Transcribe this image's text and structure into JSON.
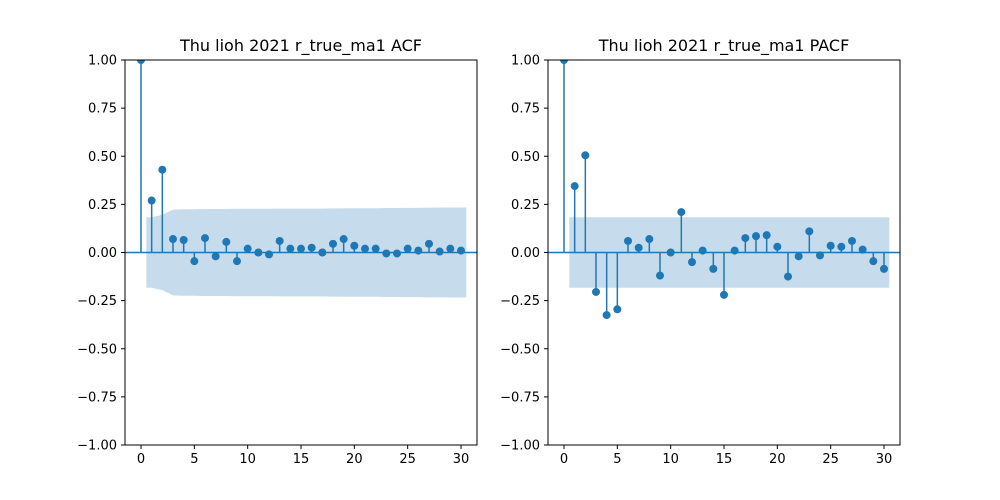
{
  "chart_data": [
    {
      "type": "stem",
      "title": "Thu lioh 2021 r_true_ma1 ACF",
      "xlabel": "",
      "ylabel": "",
      "xlim": [
        -1.5,
        31.5
      ],
      "ylim": [
        -1.0,
        1.0
      ],
      "xticks": [
        0,
        5,
        10,
        15,
        20,
        25,
        30
      ],
      "yticks": [
        -1.0,
        -0.75,
        -0.5,
        -0.25,
        0.0,
        0.25,
        0.5,
        0.75,
        1.0
      ],
      "ytick_labels": [
        "−1.00",
        "−0.75",
        "−0.50",
        "−0.25",
        "0.00",
        "0.25",
        "0.50",
        "0.75",
        "1.00"
      ],
      "grid": false,
      "color": "#1f77b4",
      "band_color": "#c6dbec",
      "lags": [
        0,
        1,
        2,
        3,
        4,
        5,
        6,
        7,
        8,
        9,
        10,
        11,
        12,
        13,
        14,
        15,
        16,
        17,
        18,
        19,
        20,
        21,
        22,
        23,
        24,
        25,
        26,
        27,
        28,
        29,
        30
      ],
      "values": [
        1.0,
        0.27,
        0.43,
        0.07,
        0.065,
        -0.045,
        0.075,
        -0.02,
        0.055,
        -0.045,
        0.02,
        0.0,
        -0.01,
        0.06,
        0.02,
        0.02,
        0.025,
        0.0,
        0.045,
        0.07,
        0.035,
        0.02,
        0.02,
        -0.005,
        -0.005,
        0.02,
        0.01,
        0.045,
        0.005,
        0.02,
        0.01
      ],
      "confidence_band": {
        "lags": [
          0.5,
          1,
          2,
          3,
          4,
          5,
          6,
          7,
          8,
          9,
          10,
          11,
          12,
          13,
          14,
          15,
          16,
          17,
          18,
          19,
          20,
          21,
          22,
          23,
          24,
          25,
          26,
          27,
          28,
          29,
          30,
          30.5
        ],
        "upper": [
          0.183,
          0.183,
          0.196,
          0.223,
          0.225,
          0.225,
          0.226,
          0.226,
          0.226,
          0.227,
          0.227,
          0.227,
          0.227,
          0.228,
          0.228,
          0.228,
          0.228,
          0.228,
          0.229,
          0.229,
          0.23,
          0.23,
          0.23,
          0.231,
          0.231,
          0.232,
          0.232,
          0.233,
          0.233,
          0.234,
          0.234,
          0.234
        ]
      }
    },
    {
      "type": "stem",
      "title": "Thu lioh 2021 r_true_ma1 PACF",
      "xlabel": "",
      "ylabel": "",
      "xlim": [
        -1.5,
        31.5
      ],
      "ylim": [
        -1.0,
        1.0
      ],
      "xticks": [
        0,
        5,
        10,
        15,
        20,
        25,
        30
      ],
      "yticks": [
        -1.0,
        -0.75,
        -0.5,
        -0.25,
        0.0,
        0.25,
        0.5,
        0.75,
        1.0
      ],
      "ytick_labels": [
        "−1.00",
        "−0.75",
        "−0.50",
        "−0.25",
        "0.00",
        "0.25",
        "0.50",
        "0.75",
        "1.00"
      ],
      "grid": false,
      "color": "#1f77b4",
      "band_color": "#c6dbec",
      "lags": [
        0,
        1,
        2,
        3,
        4,
        5,
        6,
        7,
        8,
        9,
        10,
        11,
        12,
        13,
        14,
        15,
        16,
        17,
        18,
        19,
        20,
        21,
        22,
        23,
        24,
        25,
        26,
        27,
        28,
        29,
        30
      ],
      "values": [
        1.0,
        0.345,
        0.505,
        -0.205,
        -0.325,
        -0.295,
        0.06,
        0.025,
        0.07,
        -0.12,
        0.0,
        0.21,
        -0.05,
        0.01,
        -0.085,
        -0.22,
        0.01,
        0.075,
        0.085,
        0.09,
        0.03,
        -0.125,
        -0.02,
        0.11,
        -0.015,
        0.035,
        0.03,
        0.06,
        0.015,
        -0.045,
        -0.085
      ],
      "confidence_band": {
        "lags": [
          0.5,
          30.5
        ],
        "upper": [
          0.183,
          0.183
        ]
      }
    }
  ]
}
